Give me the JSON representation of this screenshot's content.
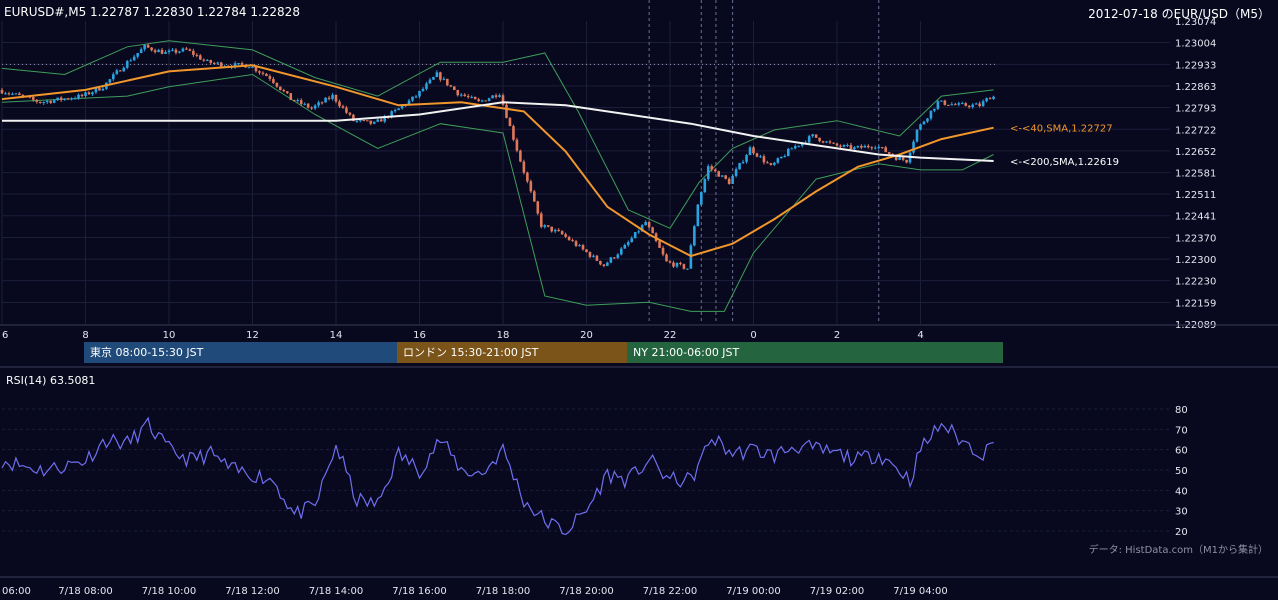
{
  "header": {
    "symbol_line": "EURUSD#,M5 1.22787 1.22830 1.22784 1.22828",
    "title": "2012-07-18 のEUR/USD（M5）"
  },
  "sessions": [
    {
      "label": "東京 08:00-15:30 JST",
      "color": "#1f4a7a"
    },
    {
      "label": "ロンドン 15:30-21:00 JST",
      "color": "#7a5418"
    },
    {
      "label": "NY 21:00-06:00 JST",
      "color": "#246540"
    }
  ],
  "sma_labels": {
    "sma40": "<-<40,SMA,1.22727",
    "sma200": "<-<200,SMA,1.22619"
  },
  "rsi": {
    "header": "RSI(14) 63.5081"
  },
  "data_source": "データ: HistData.com（M1から集計）",
  "colors": {
    "background": "#08091f",
    "up_candle": "#2aa3e0",
    "down_candle": "#e0785a",
    "sma40": "#f0962c",
    "sma200": "#f2f2f2",
    "bollinger": "#3f9e5a",
    "rsi_line": "#6f6ff0",
    "grid": "#1c1e3a"
  },
  "chart_data": [
    {
      "type": "candlestick",
      "title": "EURUSD#,M5",
      "ylim": [
        1.22089,
        1.23074
      ],
      "y_ticks": [
        "1.23074",
        "1.23004",
        "1.22933",
        "1.22863",
        "1.22793",
        "1.22722",
        "1.22652",
        "1.22581",
        "1.22511",
        "1.22441",
        "1.22370",
        "1.22300",
        "1.22230",
        "1.22159",
        "1.22089"
      ],
      "x_tick_labels": [
        "6",
        "8",
        "10",
        "12",
        "14",
        "16",
        "18",
        "20",
        "22",
        "0",
        "2",
        "4"
      ],
      "x_tick_hours": [
        6,
        8,
        10,
        12,
        14,
        16,
        18,
        20,
        22,
        24,
        26,
        28
      ],
      "x_range_hours": [
        6,
        29.75
      ],
      "close_path": [
        [
          6.0,
          1.2285
        ],
        [
          6.5,
          1.2283
        ],
        [
          7.0,
          1.2281
        ],
        [
          7.5,
          1.2282
        ],
        [
          8.0,
          1.2283
        ],
        [
          8.5,
          1.2286
        ],
        [
          9.0,
          1.2293
        ],
        [
          9.5,
          1.2299
        ],
        [
          10.0,
          1.2297
        ],
        [
          10.5,
          1.2298
        ],
        [
          11.0,
          1.2294
        ],
        [
          11.5,
          1.2293
        ],
        [
          12.0,
          1.2293
        ],
        [
          12.5,
          1.2289
        ],
        [
          13.0,
          1.2282
        ],
        [
          13.5,
          1.2279
        ],
        [
          14.0,
          1.2283
        ],
        [
          14.5,
          1.2275
        ],
        [
          15.0,
          1.2274
        ],
        [
          15.5,
          1.2278
        ],
        [
          16.0,
          1.2283
        ],
        [
          16.5,
          1.229
        ],
        [
          17.0,
          1.2284
        ],
        [
          17.5,
          1.2281
        ],
        [
          18.0,
          1.2284
        ],
        [
          18.5,
          1.2262
        ],
        [
          19.0,
          1.2241
        ],
        [
          19.5,
          1.2238
        ],
        [
          20.0,
          1.2233
        ],
        [
          20.5,
          1.2228
        ],
        [
          21.0,
          1.2234
        ],
        [
          21.5,
          1.2242
        ],
        [
          22.0,
          1.2229
        ],
        [
          22.5,
          1.2227
        ],
        [
          22.75,
          1.2248
        ],
        [
          23.0,
          1.226
        ],
        [
          23.5,
          1.2255
        ],
        [
          24.0,
          1.2266
        ],
        [
          24.5,
          1.226
        ],
        [
          25.0,
          1.2266
        ],
        [
          25.5,
          1.227
        ],
        [
          26.0,
          1.2267
        ],
        [
          26.5,
          1.2266
        ],
        [
          27.0,
          1.2267
        ],
        [
          27.5,
          1.2263
        ],
        [
          27.75,
          1.2262
        ],
        [
          28.0,
          1.2272
        ],
        [
          28.5,
          1.2281
        ],
        [
          29.0,
          1.228
        ],
        [
          29.5,
          1.228
        ],
        [
          29.75,
          1.22828
        ]
      ],
      "series": [
        {
          "name": "40,SMA",
          "last": 1.22727,
          "values": [
            [
              6.0,
              1.2282
            ],
            [
              8.0,
              1.2285
            ],
            [
              10.0,
              1.2291
            ],
            [
              12.0,
              1.2293
            ],
            [
              14.0,
              1.2286
            ],
            [
              15.5,
              1.228
            ],
            [
              17.0,
              1.2281
            ],
            [
              18.5,
              1.2278
            ],
            [
              19.5,
              1.2265
            ],
            [
              20.5,
              1.2247
            ],
            [
              21.5,
              1.2238
            ],
            [
              22.5,
              1.2231
            ],
            [
              23.5,
              1.2235
            ],
            [
              24.5,
              1.2243
            ],
            [
              25.5,
              1.2252
            ],
            [
              26.5,
              1.226
            ],
            [
              27.5,
              1.2264
            ],
            [
              28.5,
              1.2269
            ],
            [
              29.75,
              1.22727
            ]
          ]
        },
        {
          "name": "200,SMA",
          "last": 1.22619,
          "values": [
            [
              6.0,
              1.2275
            ],
            [
              10.0,
              1.2275
            ],
            [
              14.0,
              1.2275
            ],
            [
              16.0,
              1.2277
            ],
            [
              18.0,
              1.2281
            ],
            [
              19.5,
              1.228
            ],
            [
              21.0,
              1.2277
            ],
            [
              22.5,
              1.2274
            ],
            [
              24.0,
              1.227
            ],
            [
              25.5,
              1.2267
            ],
            [
              27.0,
              1.2264
            ],
            [
              28.0,
              1.2263
            ],
            [
              29.75,
              1.22619
            ]
          ]
        }
      ],
      "bollinger_upper": [
        [
          6.0,
          1.2292
        ],
        [
          7.5,
          1.229
        ],
        [
          9.0,
          1.2299
        ],
        [
          10.0,
          1.2301
        ],
        [
          12.0,
          1.2298
        ],
        [
          13.5,
          1.2289
        ],
        [
          15.0,
          1.2283
        ],
        [
          16.5,
          1.2294
        ],
        [
          18.0,
          1.2294
        ],
        [
          19.0,
          1.2297
        ],
        [
          19.8,
          1.2278
        ],
        [
          21.0,
          1.2246
        ],
        [
          22.0,
          1.224
        ],
        [
          22.7,
          1.2255
        ],
        [
          23.5,
          1.2266
        ],
        [
          24.5,
          1.2272
        ],
        [
          26.0,
          1.2275
        ],
        [
          27.5,
          1.227
        ],
        [
          28.5,
          1.2283
        ],
        [
          29.75,
          1.2285
        ]
      ],
      "bollinger_lower": [
        [
          6.0,
          1.2281
        ],
        [
          7.5,
          1.2282
        ],
        [
          9.0,
          1.2283
        ],
        [
          10.0,
          1.2286
        ],
        [
          12.0,
          1.229
        ],
        [
          13.5,
          1.2277
        ],
        [
          15.0,
          1.2266
        ],
        [
          16.5,
          1.2274
        ],
        [
          18.0,
          1.2271
        ],
        [
          19.0,
          1.2218
        ],
        [
          20.0,
          1.2215
        ],
        [
          21.5,
          1.2216
        ],
        [
          22.5,
          1.2213
        ],
        [
          23.3,
          1.2213
        ],
        [
          24.0,
          1.2232
        ],
        [
          25.5,
          1.2256
        ],
        [
          27.0,
          1.2261
        ],
        [
          28.0,
          1.2259
        ],
        [
          29.0,
          1.2259
        ],
        [
          29.75,
          1.2264
        ]
      ],
      "dotted_level": 1.22933
    },
    {
      "type": "line",
      "title": "RSI(14)",
      "last": 63.5081,
      "ylim": [
        20,
        80
      ],
      "y_ticks": [
        "80",
        "70",
        "60",
        "50",
        "40",
        "30",
        "20"
      ],
      "x_tick_labels": [
        "06:00",
        "7/18 08:00",
        "7/18 10:00",
        "7/18 12:00",
        "7/18 14:00",
        "7/18 16:00",
        "7/18 18:00",
        "7/18 20:00",
        "7/18 22:00",
        "7/19 00:00",
        "7/19 02:00",
        "7/19 04:00"
      ],
      "values": [
        [
          6.0,
          55
        ],
        [
          6.5,
          52
        ],
        [
          7.0,
          50
        ],
        [
          7.5,
          52
        ],
        [
          8.0,
          55
        ],
        [
          8.5,
          65
        ],
        [
          9.0,
          63
        ],
        [
          9.5,
          72
        ],
        [
          10.0,
          60
        ],
        [
          10.5,
          55
        ],
        [
          11.0,
          58
        ],
        [
          11.5,
          50
        ],
        [
          12.0,
          48
        ],
        [
          12.5,
          45
        ],
        [
          13.0,
          28
        ],
        [
          13.5,
          32
        ],
        [
          14.0,
          62
        ],
        [
          14.5,
          35
        ],
        [
          15.0,
          33
        ],
        [
          15.5,
          58
        ],
        [
          16.0,
          50
        ],
        [
          16.5,
          65
        ],
        [
          17.0,
          50
        ],
        [
          17.5,
          48
        ],
        [
          18.0,
          60
        ],
        [
          18.5,
          35
        ],
        [
          19.0,
          25
        ],
        [
          19.5,
          20
        ],
        [
          20.0,
          30
        ],
        [
          20.5,
          48
        ],
        [
          21.0,
          45
        ],
        [
          21.5,
          55
        ],
        [
          22.0,
          45
        ],
        [
          22.5,
          45
        ],
        [
          22.75,
          55
        ],
        [
          23.0,
          66
        ],
        [
          23.5,
          58
        ],
        [
          24.0,
          60
        ],
        [
          24.5,
          57
        ],
        [
          25.0,
          62
        ],
        [
          25.5,
          60
        ],
        [
          26.0,
          58
        ],
        [
          26.5,
          55
        ],
        [
          27.0,
          58
        ],
        [
          27.5,
          50
        ],
        [
          27.75,
          45
        ],
        [
          28.0,
          60
        ],
        [
          28.5,
          73
        ],
        [
          29.0,
          64
        ],
        [
          29.5,
          58
        ],
        [
          29.75,
          63.5081
        ]
      ]
    }
  ]
}
